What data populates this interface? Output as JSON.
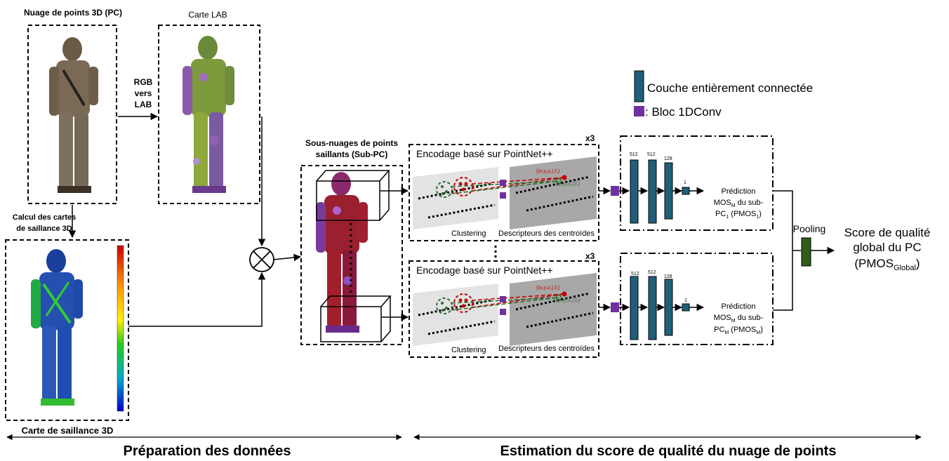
{
  "labels": {
    "pc_title": "Nuage de points 3D (PC)",
    "lab_map": "Carte LAB",
    "rgb_line1": "RGB",
    "rgb_line2": "vers",
    "rgb_line3": "LAB",
    "saliency_calc_line1": "Calcul des cartes",
    "saliency_calc_line2": "de saillance 3D",
    "saliency_map": "Carte de saillance 3D",
    "subpc_line1": "Sous-nuages de points",
    "subpc_line2": "saillants (Sub-PC)",
    "x3_top": "x3",
    "x3_bottom": "x3",
    "encoding_top": "Encodage basé sur PointNet++",
    "encoding_bottom": "Encodage basé sur PointNet++",
    "clustering_top": "Clustering",
    "clustering_bottom": "Clustering",
    "descriptors_top": "Descripteurs des centroïdes",
    "descriptors_bottom": "Descripteurs des centroïdes",
    "coord1": "((x₁y₁z₁),f₁)",
    "coord2": "((x₂y₂z₂),f₂)",
    "pooling": "Pooling",
    "legend_fc": "Couche entièrement connectée",
    "legend_conv": ": Bloc 1DConv",
    "fc_512a": "512",
    "fc_512b": "512",
    "fc_128": "128",
    "fc_1": "1",
    "pred1_line1": "Prédiction",
    "pred1_line2a": "MOS",
    "pred1_line2sub": "M",
    "pred1_line2b": " du sub-",
    "pred1_line3a": "PC",
    "pred1_line3sub": "1",
    "pred1_line3b": " (PMOS",
    "pred1_line3sub2": "1",
    "pred1_line3c": ")",
    "pred2_line1": "Prédiction",
    "pred2_line2a": "MOS",
    "pred2_line2sub": "M",
    "pred2_line2b": " du sub-",
    "pred2_line3a": "PC",
    "pred2_line3sub": "M",
    "pred2_line3b": " (PMOS",
    "pred2_line3sub2": "M",
    "pred2_line3c": ")",
    "score_line1": "Score de qualité",
    "score_line2": "global du PC",
    "score_line3a": "(PMOS",
    "score_line3sub": "Global",
    "score_line3b": ")",
    "section_left": "Préparation des données",
    "section_right": "Estimation du score de qualité du nuage de points"
  },
  "colors": {
    "fc_layer": "#1f5f7a",
    "conv_block": "#7030a0",
    "pooling": "#2e5d1e",
    "clustering_red": "#c00000",
    "clustering_green": "#2e6b2e"
  }
}
